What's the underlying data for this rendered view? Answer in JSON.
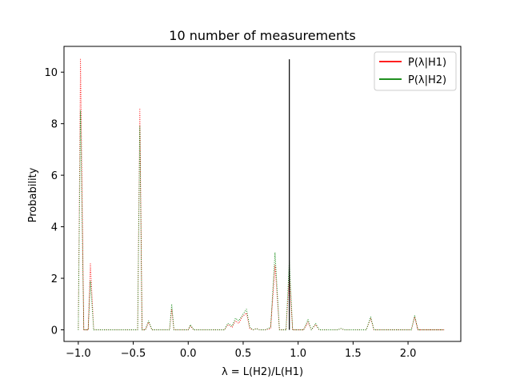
{
  "chart_data": {
    "type": "line",
    "title": "10 number of measurements",
    "xlabel": "λ = L(H2)/L(H1)",
    "ylabel": "Probability",
    "xlim": [
      -1.13,
      2.48
    ],
    "ylim": [
      -0.45,
      11.0
    ],
    "x_ticks": [
      -1.0,
      -0.5,
      0.0,
      0.5,
      1.0,
      1.5,
      2.0
    ],
    "x_tick_labels": [
      "−1.0",
      "−0.5",
      "0.0",
      "0.5",
      "1.0",
      "1.5",
      "2.0"
    ],
    "y_ticks": [
      0,
      2,
      4,
      6,
      8,
      10
    ],
    "y_tick_labels": [
      "0",
      "2",
      "4",
      "6",
      "8",
      "10"
    ],
    "grid": false,
    "legend_position": "top-right",
    "series": [
      {
        "name": "P(λ|H1)",
        "color": "#ff0000",
        "line_style": "dotted",
        "points": [
          [
            -1.0,
            0.0
          ],
          [
            -0.98,
            10.5
          ],
          [
            -0.95,
            0.0
          ],
          [
            -0.91,
            0.0
          ],
          [
            -0.89,
            2.6
          ],
          [
            -0.86,
            0.0
          ],
          [
            -0.46,
            0.0
          ],
          [
            -0.44,
            8.6
          ],
          [
            -0.42,
            0.0
          ],
          [
            -0.39,
            0.0
          ],
          [
            -0.36,
            0.3
          ],
          [
            -0.33,
            0.0
          ],
          [
            -0.17,
            0.0
          ],
          [
            -0.15,
            0.8
          ],
          [
            -0.13,
            0.0
          ],
          [
            0.0,
            0.0
          ],
          [
            0.02,
            0.15
          ],
          [
            0.05,
            0.0
          ],
          [
            0.33,
            0.0
          ],
          [
            0.36,
            0.2
          ],
          [
            0.4,
            0.1
          ],
          [
            0.43,
            0.35
          ],
          [
            0.46,
            0.25
          ],
          [
            0.49,
            0.5
          ],
          [
            0.53,
            0.65
          ],
          [
            0.56,
            0.05
          ],
          [
            0.59,
            0.0
          ],
          [
            0.62,
            0.05
          ],
          [
            0.65,
            0.0
          ],
          [
            0.7,
            0.0
          ],
          [
            0.75,
            0.05
          ],
          [
            0.79,
            2.5
          ],
          [
            0.83,
            0.0
          ],
          [
            0.89,
            0.0
          ],
          [
            0.92,
            2.1
          ],
          [
            0.95,
            0.0
          ],
          [
            1.05,
            0.0
          ],
          [
            1.09,
            0.3
          ],
          [
            1.12,
            0.0
          ],
          [
            1.16,
            0.2
          ],
          [
            1.19,
            0.0
          ],
          [
            1.36,
            0.0
          ],
          [
            1.39,
            0.05
          ],
          [
            1.42,
            0.0
          ],
          [
            1.62,
            0.0
          ],
          [
            1.66,
            0.45
          ],
          [
            1.69,
            0.0
          ],
          [
            2.03,
            0.0
          ],
          [
            2.06,
            0.5
          ],
          [
            2.09,
            0.0
          ],
          [
            2.33,
            0.0
          ]
        ]
      },
      {
        "name": "P(λ|H2)",
        "color": "#008000",
        "line_style": "dotted",
        "points": [
          [
            -1.0,
            0.0
          ],
          [
            -0.98,
            8.5
          ],
          [
            -0.95,
            0.0
          ],
          [
            -0.91,
            0.0
          ],
          [
            -0.89,
            1.9
          ],
          [
            -0.86,
            0.0
          ],
          [
            -0.46,
            0.0
          ],
          [
            -0.44,
            7.9
          ],
          [
            -0.42,
            0.0
          ],
          [
            -0.39,
            0.0
          ],
          [
            -0.36,
            0.35
          ],
          [
            -0.33,
            0.0
          ],
          [
            -0.17,
            0.0
          ],
          [
            -0.15,
            1.0
          ],
          [
            -0.13,
            0.0
          ],
          [
            0.0,
            0.0
          ],
          [
            0.02,
            0.2
          ],
          [
            0.05,
            0.0
          ],
          [
            0.33,
            0.0
          ],
          [
            0.36,
            0.25
          ],
          [
            0.4,
            0.15
          ],
          [
            0.43,
            0.45
          ],
          [
            0.46,
            0.35
          ],
          [
            0.49,
            0.55
          ],
          [
            0.53,
            0.8
          ],
          [
            0.56,
            0.1
          ],
          [
            0.59,
            0.0
          ],
          [
            0.62,
            0.05
          ],
          [
            0.65,
            0.0
          ],
          [
            0.7,
            0.0
          ],
          [
            0.75,
            0.1
          ],
          [
            0.79,
            3.0
          ],
          [
            0.83,
            0.0
          ],
          [
            0.89,
            0.0
          ],
          [
            0.92,
            2.7
          ],
          [
            0.95,
            0.0
          ],
          [
            1.05,
            0.0
          ],
          [
            1.09,
            0.4
          ],
          [
            1.12,
            0.0
          ],
          [
            1.16,
            0.25
          ],
          [
            1.19,
            0.0
          ],
          [
            1.36,
            0.0
          ],
          [
            1.39,
            0.05
          ],
          [
            1.42,
            0.0
          ],
          [
            1.62,
            0.0
          ],
          [
            1.66,
            0.5
          ],
          [
            1.69,
            0.0
          ],
          [
            2.03,
            0.0
          ],
          [
            2.06,
            0.55
          ],
          [
            2.09,
            0.0
          ],
          [
            2.33,
            0.0
          ]
        ]
      }
    ],
    "vertical_line": {
      "x": 0.92,
      "y_from": 0.0,
      "y_to": 10.5,
      "color": "#000000"
    }
  }
}
